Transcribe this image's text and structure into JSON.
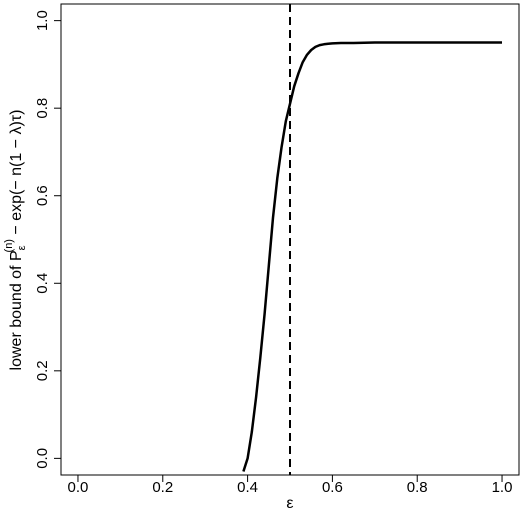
{
  "chart_data": {
    "type": "line",
    "title": "",
    "xlabel": "ε",
    "ylabel": {
      "prefix": "lower bound of P",
      "subscript": "ε",
      "superscript": "(n)",
      "suffix": " − exp(− n(1 − λ)τ)"
    },
    "xlim": [
      -0.04,
      1.04
    ],
    "ylim": [
      -0.038,
      1.038
    ],
    "xticks": [
      0.0,
      0.2,
      0.4,
      0.6,
      0.8,
      1.0
    ],
    "xtick_labels": [
      "0.0",
      "0.2",
      "0.4",
      "0.6",
      "0.8",
      "1.0"
    ],
    "yticks": [
      0.0,
      0.2,
      0.4,
      0.6,
      0.8,
      1.0
    ],
    "ytick_labels": [
      "0.0",
      "0.2",
      "0.4",
      "0.6",
      "0.8",
      "1.0"
    ],
    "grid": false,
    "legend": "none",
    "vline": {
      "x": 0.5,
      "style": "dashed"
    },
    "series": [
      {
        "x": [
          0.39,
          0.4,
          0.41,
          0.42,
          0.43,
          0.44,
          0.45,
          0.46,
          0.47,
          0.48,
          0.49,
          0.5,
          0.51,
          0.52,
          0.53,
          0.54,
          0.55,
          0.56,
          0.57,
          0.58,
          0.59,
          0.6,
          0.62,
          0.65,
          0.7,
          0.8,
          0.9,
          1.0
        ],
        "y": [
          -0.03,
          0.0,
          0.06,
          0.14,
          0.23,
          0.33,
          0.44,
          0.55,
          0.64,
          0.71,
          0.77,
          0.81,
          0.85,
          0.88,
          0.905,
          0.922,
          0.933,
          0.94,
          0.944,
          0.946,
          0.947,
          0.948,
          0.949,
          0.949,
          0.95,
          0.95,
          0.95,
          0.95
        ],
        "color": "#000000"
      }
    ]
  }
}
